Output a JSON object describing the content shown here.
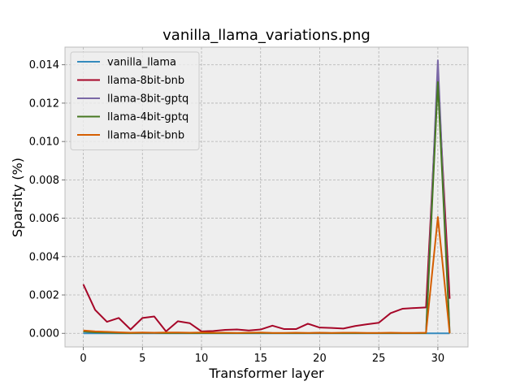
{
  "chart_data": {
    "type": "line",
    "title": "vanilla_llama_variations.png",
    "xlabel": "Transformer layer",
    "ylabel": "Sparsity (%)",
    "xlim": [
      -1.55,
      32.55
    ],
    "ylim": [
      -0.00071,
      0.01492
    ],
    "xticks": [
      0,
      5,
      10,
      15,
      20,
      25,
      30
    ],
    "yticks": [
      0.0,
      0.002,
      0.004,
      0.006,
      0.008,
      0.01,
      0.012,
      0.014
    ],
    "ytick_labels": [
      "0.000",
      "0.002",
      "0.004",
      "0.006",
      "0.008",
      "0.010",
      "0.012",
      "0.014"
    ],
    "grid": true,
    "legend_position": "upper-left",
    "x": [
      0,
      1,
      2,
      3,
      4,
      5,
      6,
      7,
      8,
      9,
      10,
      11,
      12,
      13,
      14,
      15,
      16,
      17,
      18,
      19,
      20,
      21,
      22,
      23,
      24,
      25,
      26,
      27,
      28,
      29,
      30,
      31
    ],
    "series": [
      {
        "name": "vanilla_llama",
        "color": "#348ABD",
        "values": [
          0,
          0,
          0,
          0,
          0,
          0,
          0,
          0,
          0,
          0,
          0,
          0,
          0,
          0,
          0,
          0,
          0,
          0,
          0,
          0,
          0,
          0,
          0,
          0,
          0,
          0,
          0,
          0,
          0,
          0,
          0,
          0
        ]
      },
      {
        "name": "llama-8bit-bnb",
        "color": "#A60628",
        "values": [
          0.00255,
          0.00122,
          0.0006,
          0.0008,
          0.0002,
          0.0008,
          0.00088,
          0.0001,
          0.00063,
          0.00053,
          0.0001,
          0.00012,
          0.00018,
          0.0002,
          0.00015,
          0.0002,
          0.0004,
          0.00022,
          0.00022,
          0.0005,
          0.0003,
          0.00028,
          0.00025,
          0.00038,
          0.00047,
          0.00055,
          0.00105,
          0.00128,
          0.00132,
          0.00135,
          0.0134,
          0.0018
        ]
      },
      {
        "name": "llama-8bit-gptq",
        "color": "#7A68A6",
        "values": [
          0.0001,
          5e-05,
          4e-05,
          2e-05,
          1e-05,
          2e-05,
          2e-05,
          1e-05,
          2e-05,
          1e-05,
          1e-05,
          1e-05,
          1e-05,
          1e-05,
          1e-05,
          2e-05,
          1e-05,
          1e-05,
          1e-05,
          1e-05,
          2e-05,
          1e-05,
          1e-05,
          1e-05,
          1e-05,
          1e-05,
          1e-05,
          1e-05,
          1e-05,
          1e-05,
          0.01423,
          0.0
        ]
      },
      {
        "name": "llama-4bit-gptq",
        "color": "#467821",
        "values": [
          0.0001,
          5e-05,
          4e-05,
          2e-05,
          1e-05,
          2e-05,
          2e-05,
          1e-05,
          2e-05,
          1e-05,
          1e-05,
          1e-05,
          1e-05,
          1e-05,
          1e-05,
          2e-05,
          1e-05,
          1e-05,
          1e-05,
          1e-05,
          2e-05,
          1e-05,
          1e-05,
          1e-05,
          1e-05,
          1e-05,
          1e-05,
          1e-05,
          1e-05,
          1e-05,
          0.0131,
          0.0
        ]
      },
      {
        "name": "llama-4bit-bnb",
        "color": "#D55E00",
        "values": [
          0.00015,
          0.0001,
          8e-05,
          5e-05,
          3e-05,
          4e-05,
          3e-05,
          4e-05,
          4e-05,
          3e-05,
          4e-05,
          3e-05,
          3e-05,
          2e-05,
          3e-05,
          4e-05,
          2e-05,
          2e-05,
          3e-05,
          2e-05,
          3e-05,
          2e-05,
          3e-05,
          3e-05,
          2e-05,
          2e-05,
          3e-05,
          2e-05,
          2e-05,
          3e-05,
          0.00606,
          0.0
        ]
      }
    ]
  }
}
